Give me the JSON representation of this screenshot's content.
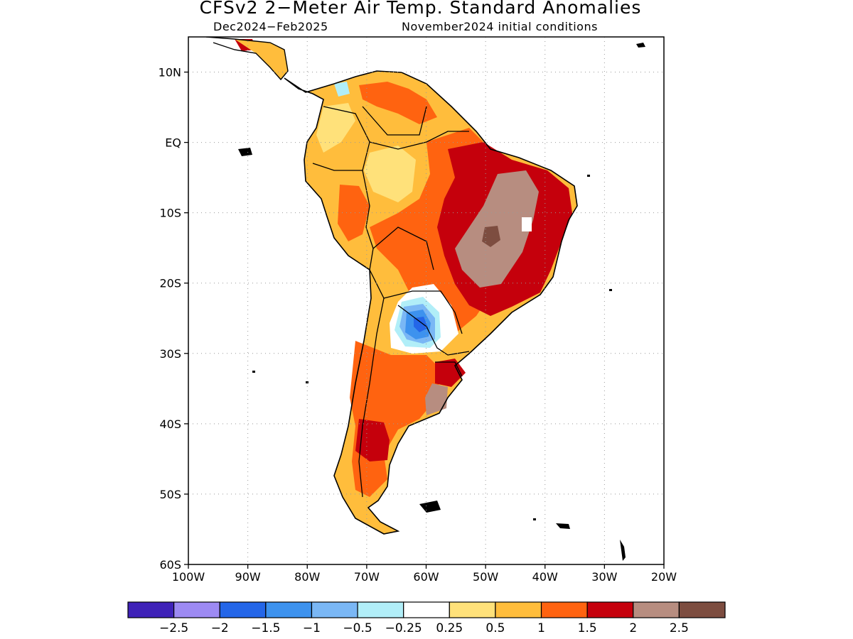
{
  "title": "CFSv2 2−Meter Air Temp. Standard Anomalies",
  "subtitle_left": "Dec2024−Feb2025",
  "subtitle_right": "November2024 initial conditions",
  "map": {
    "region": "South America",
    "lon_range": [
      -100,
      -20
    ],
    "lat_range": [
      -60,
      15
    ],
    "lat_ticks": [
      {
        "value": 10,
        "label": "10N"
      },
      {
        "value": 0,
        "label": "EQ"
      },
      {
        "value": -10,
        "label": "10S"
      },
      {
        "value": -20,
        "label": "20S"
      },
      {
        "value": -30,
        "label": "30S"
      },
      {
        "value": -40,
        "label": "40S"
      },
      {
        "value": -50,
        "label": "50S"
      },
      {
        "value": -60,
        "label": "60S"
      }
    ],
    "lon_ticks": [
      {
        "value": -100,
        "label": "100W"
      },
      {
        "value": -90,
        "label": "90W"
      },
      {
        "value": -80,
        "label": "80W"
      },
      {
        "value": -70,
        "label": "70W"
      },
      {
        "value": -60,
        "label": "60W"
      },
      {
        "value": -50,
        "label": "50W"
      },
      {
        "value": -40,
        "label": "40W"
      },
      {
        "value": -30,
        "label": "30W"
      },
      {
        "value": -20,
        "label": "20W"
      }
    ],
    "grid": "dotted"
  },
  "colorbar": {
    "colors": [
      "#3f22b8",
      "#9d8af3",
      "#2466e8",
      "#3d92ee",
      "#7ab7f5",
      "#b1eef8",
      "#ffffff",
      "#ffe17a",
      "#ffbd3c",
      "#ff6310",
      "#c5000c",
      "#b78d80",
      "#7d4d40"
    ],
    "labels": [
      "−2.5",
      "−2",
      "−1.5",
      "−1",
      "−0.5",
      "−0.25",
      "0.25",
      "0.5",
      "1",
      "1.5",
      "2",
      "2.5"
    ]
  }
}
